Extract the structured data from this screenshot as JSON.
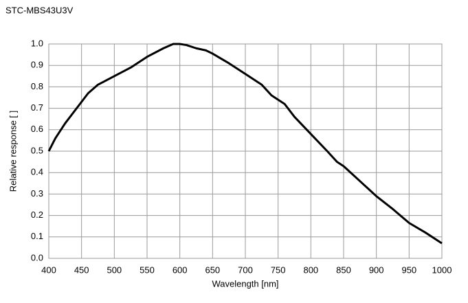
{
  "chart_data": {
    "type": "line",
    "title": "STC-MBS43U3V",
    "x_label": "Wavelength [nm]",
    "y_label": "Relative response [ ]",
    "x": [
      400,
      410,
      425,
      450,
      460,
      475,
      500,
      525,
      550,
      575,
      590,
      600,
      610,
      625,
      640,
      650,
      675,
      700,
      725,
      740,
      750,
      760,
      775,
      800,
      825,
      840,
      850,
      875,
      900,
      925,
      950,
      975,
      1000
    ],
    "series": [
      {
        "name": "STC-MBS43U3V",
        "color": "#000000",
        "values": [
          0.5,
          0.56,
          0.63,
          0.73,
          0.77,
          0.81,
          0.85,
          0.89,
          0.94,
          0.98,
          1.0,
          1.0,
          0.995,
          0.98,
          0.97,
          0.955,
          0.91,
          0.86,
          0.81,
          0.76,
          0.74,
          0.72,
          0.66,
          0.58,
          0.5,
          0.45,
          0.43,
          0.36,
          0.29,
          0.23,
          0.165,
          0.12,
          0.07
        ]
      }
    ],
    "xlim": [
      400,
      1000
    ],
    "ylim": [
      0,
      1
    ],
    "xticks": [
      400,
      450,
      500,
      550,
      600,
      650,
      700,
      750,
      800,
      850,
      900,
      950,
      1000
    ],
    "yticks": [
      {
        "value": 0,
        "label": "0.0"
      },
      0.1,
      0.2,
      0.3,
      0.4,
      0.5,
      0.6,
      0.7,
      0.8,
      0.9,
      {
        "value": 1,
        "label": "1.0"
      }
    ],
    "grid": true
  }
}
